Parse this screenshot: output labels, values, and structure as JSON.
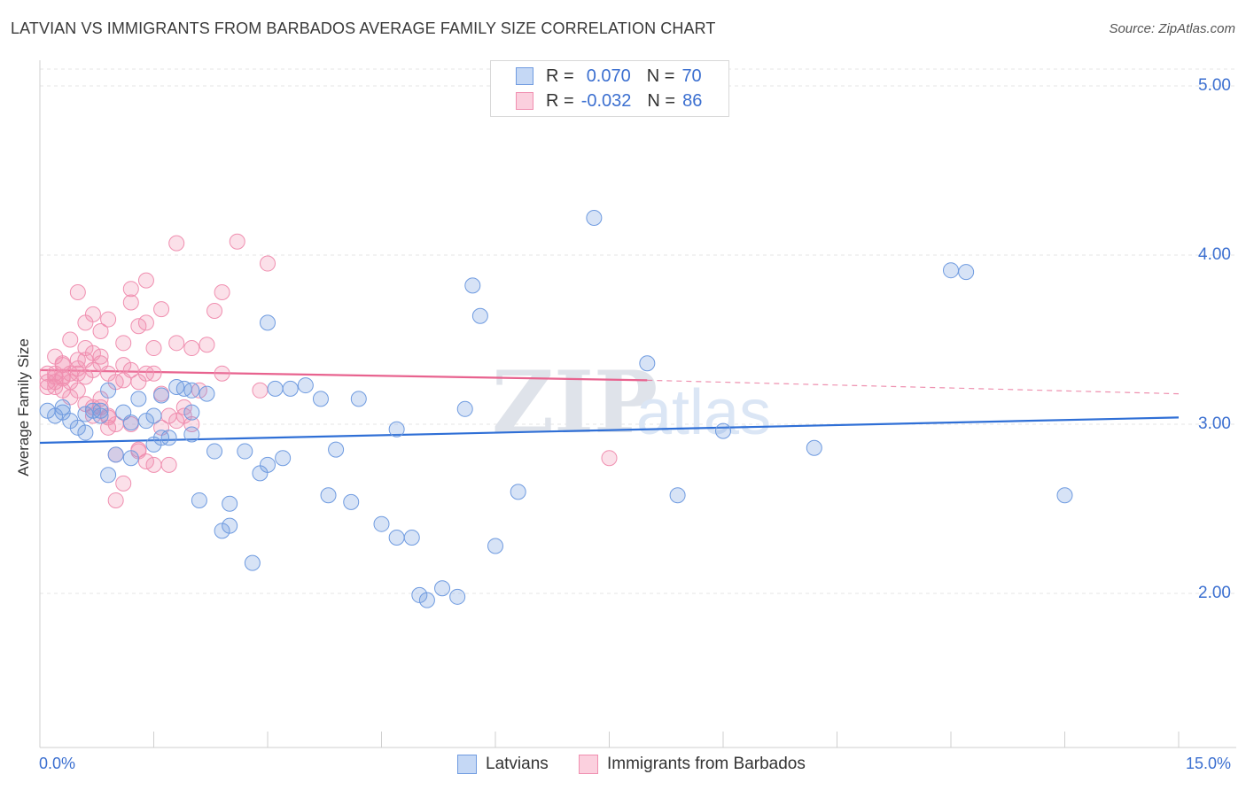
{
  "header": {
    "title": "LATVIAN VS IMMIGRANTS FROM BARBADOS AVERAGE FAMILY SIZE CORRELATION CHART",
    "source": "Source: ZipAtlas.com"
  },
  "legend": {
    "rows": [
      {
        "r_label": "R =",
        "r_value": "0.070",
        "n_label": "N =",
        "n_value": "70"
      },
      {
        "r_label": "R =",
        "r_value": "-0.032",
        "n_label": "N =",
        "n_value": "86"
      }
    ]
  },
  "watermark": {
    "zip": "ZIP",
    "atlas": "atlas"
  },
  "chart_data": {
    "type": "scatter",
    "title": "LATVIAN VS IMMIGRANTS FROM BARBADOS AVERAGE FAMILY SIZE CORRELATION CHART",
    "xlabel": "",
    "ylabel": "Average Family Size",
    "xlim": [
      0,
      15
    ],
    "ylim": [
      1.0,
      5.1
    ],
    "x_tick_labels": [
      "0.0%",
      "15.0%"
    ],
    "y_ticks": [
      2.0,
      3.0,
      4.0,
      5.0
    ],
    "y_tick_labels": [
      "2.00",
      "3.00",
      "4.00",
      "5.00"
    ],
    "grid": "horizontal dashed",
    "legend_position": "top-center",
    "colors": {
      "latvians": "#6f9be0",
      "barbados": "#f08fb0",
      "latvians_line": "#2f6fd6",
      "barbados_line": "#e8638f"
    },
    "series": [
      {
        "name": "Latvians",
        "trend": {
          "x": [
            0,
            15
          ],
          "y": [
            2.89,
            3.04
          ]
        },
        "points": [
          [
            0.1,
            3.08
          ],
          [
            0.2,
            3.05
          ],
          [
            0.3,
            3.07
          ],
          [
            0.4,
            3.02
          ],
          [
            0.5,
            2.98
          ],
          [
            0.6,
            2.95
          ],
          [
            0.6,
            3.06
          ],
          [
            0.7,
            3.08
          ],
          [
            0.8,
            3.05
          ],
          [
            0.9,
            3.2
          ],
          [
            0.9,
            2.7
          ],
          [
            1.0,
            2.82
          ],
          [
            1.1,
            3.07
          ],
          [
            1.2,
            3.01
          ],
          [
            1.2,
            2.8
          ],
          [
            1.3,
            3.15
          ],
          [
            1.4,
            3.02
          ],
          [
            1.5,
            2.88
          ],
          [
            1.6,
            3.17
          ],
          [
            1.6,
            2.92
          ],
          [
            1.7,
            2.92
          ],
          [
            1.8,
            3.22
          ],
          [
            1.9,
            3.21
          ],
          [
            2.0,
            3.07
          ],
          [
            2.0,
            2.94
          ],
          [
            2.1,
            2.55
          ],
          [
            2.2,
            3.18
          ],
          [
            2.3,
            2.84
          ],
          [
            2.4,
            2.37
          ],
          [
            2.5,
            2.4
          ],
          [
            2.5,
            2.53
          ],
          [
            2.7,
            2.84
          ],
          [
            2.8,
            2.18
          ],
          [
            2.9,
            2.71
          ],
          [
            3.0,
            2.76
          ],
          [
            3.0,
            3.6
          ],
          [
            3.1,
            3.21
          ],
          [
            3.2,
            2.8
          ],
          [
            3.3,
            3.21
          ],
          [
            3.5,
            3.23
          ],
          [
            3.7,
            3.15
          ],
          [
            3.8,
            2.58
          ],
          [
            3.9,
            2.85
          ],
          [
            4.1,
            2.54
          ],
          [
            4.2,
            3.15
          ],
          [
            4.5,
            2.41
          ],
          [
            4.7,
            2.97
          ],
          [
            4.7,
            2.33
          ],
          [
            4.9,
            2.33
          ],
          [
            5.0,
            1.99
          ],
          [
            5.1,
            1.96
          ],
          [
            5.3,
            2.03
          ],
          [
            5.5,
            1.98
          ],
          [
            5.6,
            3.09
          ],
          [
            5.7,
            3.82
          ],
          [
            5.8,
            3.64
          ],
          [
            6.0,
            2.28
          ],
          [
            6.3,
            2.6
          ],
          [
            7.3,
            4.22
          ],
          [
            8.0,
            3.36
          ],
          [
            8.4,
            2.58
          ],
          [
            9.0,
            2.96
          ],
          [
            10.2,
            2.86
          ],
          [
            12.0,
            3.91
          ],
          [
            12.2,
            3.9
          ],
          [
            13.5,
            2.58
          ],
          [
            0.3,
            3.1
          ],
          [
            0.8,
            3.08
          ],
          [
            1.5,
            3.05
          ],
          [
            2.0,
            3.2
          ]
        ]
      },
      {
        "name": "Immigrants from Barbados",
        "trend": {
          "x": [
            0,
            8
          ],
          "y": [
            3.32,
            3.26
          ]
        },
        "trend_extension": {
          "x": [
            8,
            15
          ],
          "y": [
            3.26,
            3.18
          ]
        },
        "points": [
          [
            0.1,
            3.25
          ],
          [
            0.1,
            3.3
          ],
          [
            0.2,
            3.22
          ],
          [
            0.2,
            3.28
          ],
          [
            0.2,
            3.4
          ],
          [
            0.3,
            3.27
          ],
          [
            0.3,
            3.35
          ],
          [
            0.3,
            3.2
          ],
          [
            0.4,
            3.3
          ],
          [
            0.4,
            3.5
          ],
          [
            0.4,
            3.25
          ],
          [
            0.5,
            3.78
          ],
          [
            0.5,
            3.33
          ],
          [
            0.5,
            3.38
          ],
          [
            0.6,
            3.45
          ],
          [
            0.6,
            3.6
          ],
          [
            0.6,
            3.28
          ],
          [
            0.7,
            3.65
          ],
          [
            0.7,
            3.42
          ],
          [
            0.7,
            3.1
          ],
          [
            0.8,
            3.55
          ],
          [
            0.8,
            3.4
          ],
          [
            0.8,
            3.15
          ],
          [
            0.9,
            3.3
          ],
          [
            0.9,
            3.62
          ],
          [
            0.9,
            3.05
          ],
          [
            1.0,
            3.25
          ],
          [
            1.0,
            2.55
          ],
          [
            1.0,
            3.0
          ],
          [
            1.1,
            3.35
          ],
          [
            1.1,
            3.48
          ],
          [
            1.1,
            2.65
          ],
          [
            1.2,
            3.8
          ],
          [
            1.2,
            3.72
          ],
          [
            1.2,
            3.32
          ],
          [
            1.3,
            3.58
          ],
          [
            1.3,
            2.85
          ],
          [
            1.3,
            3.25
          ],
          [
            1.4,
            3.85
          ],
          [
            1.4,
            3.6
          ],
          [
            1.4,
            2.78
          ],
          [
            1.5,
            3.45
          ],
          [
            1.5,
            3.3
          ],
          [
            1.6,
            3.68
          ],
          [
            1.6,
            3.18
          ],
          [
            1.7,
            2.76
          ],
          [
            1.8,
            4.07
          ],
          [
            1.8,
            3.48
          ],
          [
            1.9,
            3.1
          ],
          [
            1.9,
            3.05
          ],
          [
            2.0,
            3.0
          ],
          [
            2.0,
            3.45
          ],
          [
            2.1,
            3.2
          ],
          [
            2.2,
            3.47
          ],
          [
            2.3,
            3.67
          ],
          [
            2.4,
            3.78
          ],
          [
            2.4,
            3.3
          ],
          [
            2.6,
            4.08
          ],
          [
            2.9,
            3.2
          ],
          [
            3.0,
            3.95
          ],
          [
            0.1,
            3.22
          ],
          [
            0.2,
            3.3
          ],
          [
            0.3,
            3.36
          ],
          [
            0.5,
            3.2
          ],
          [
            0.6,
            3.12
          ],
          [
            0.7,
            3.05
          ],
          [
            0.8,
            3.1
          ],
          [
            1.0,
            2.82
          ],
          [
            1.2,
            3.0
          ],
          [
            1.3,
            2.84
          ],
          [
            1.5,
            2.76
          ],
          [
            1.6,
            2.98
          ],
          [
            1.7,
            3.05
          ],
          [
            1.8,
            3.02
          ],
          [
            0.4,
            3.16
          ],
          [
            0.5,
            3.3
          ],
          [
            0.9,
            3.04
          ],
          [
            1.1,
            3.26
          ],
          [
            1.4,
            3.3
          ],
          [
            0.2,
            3.25
          ],
          [
            0.3,
            3.28
          ],
          [
            0.6,
            3.38
          ],
          [
            0.7,
            3.32
          ],
          [
            0.8,
            3.36
          ],
          [
            7.5,
            2.8
          ],
          [
            0.9,
            2.98
          ]
        ]
      }
    ]
  },
  "bottom_legend": {
    "items": [
      {
        "label": "Latvians"
      },
      {
        "label": "Immigrants from Barbados"
      }
    ]
  }
}
